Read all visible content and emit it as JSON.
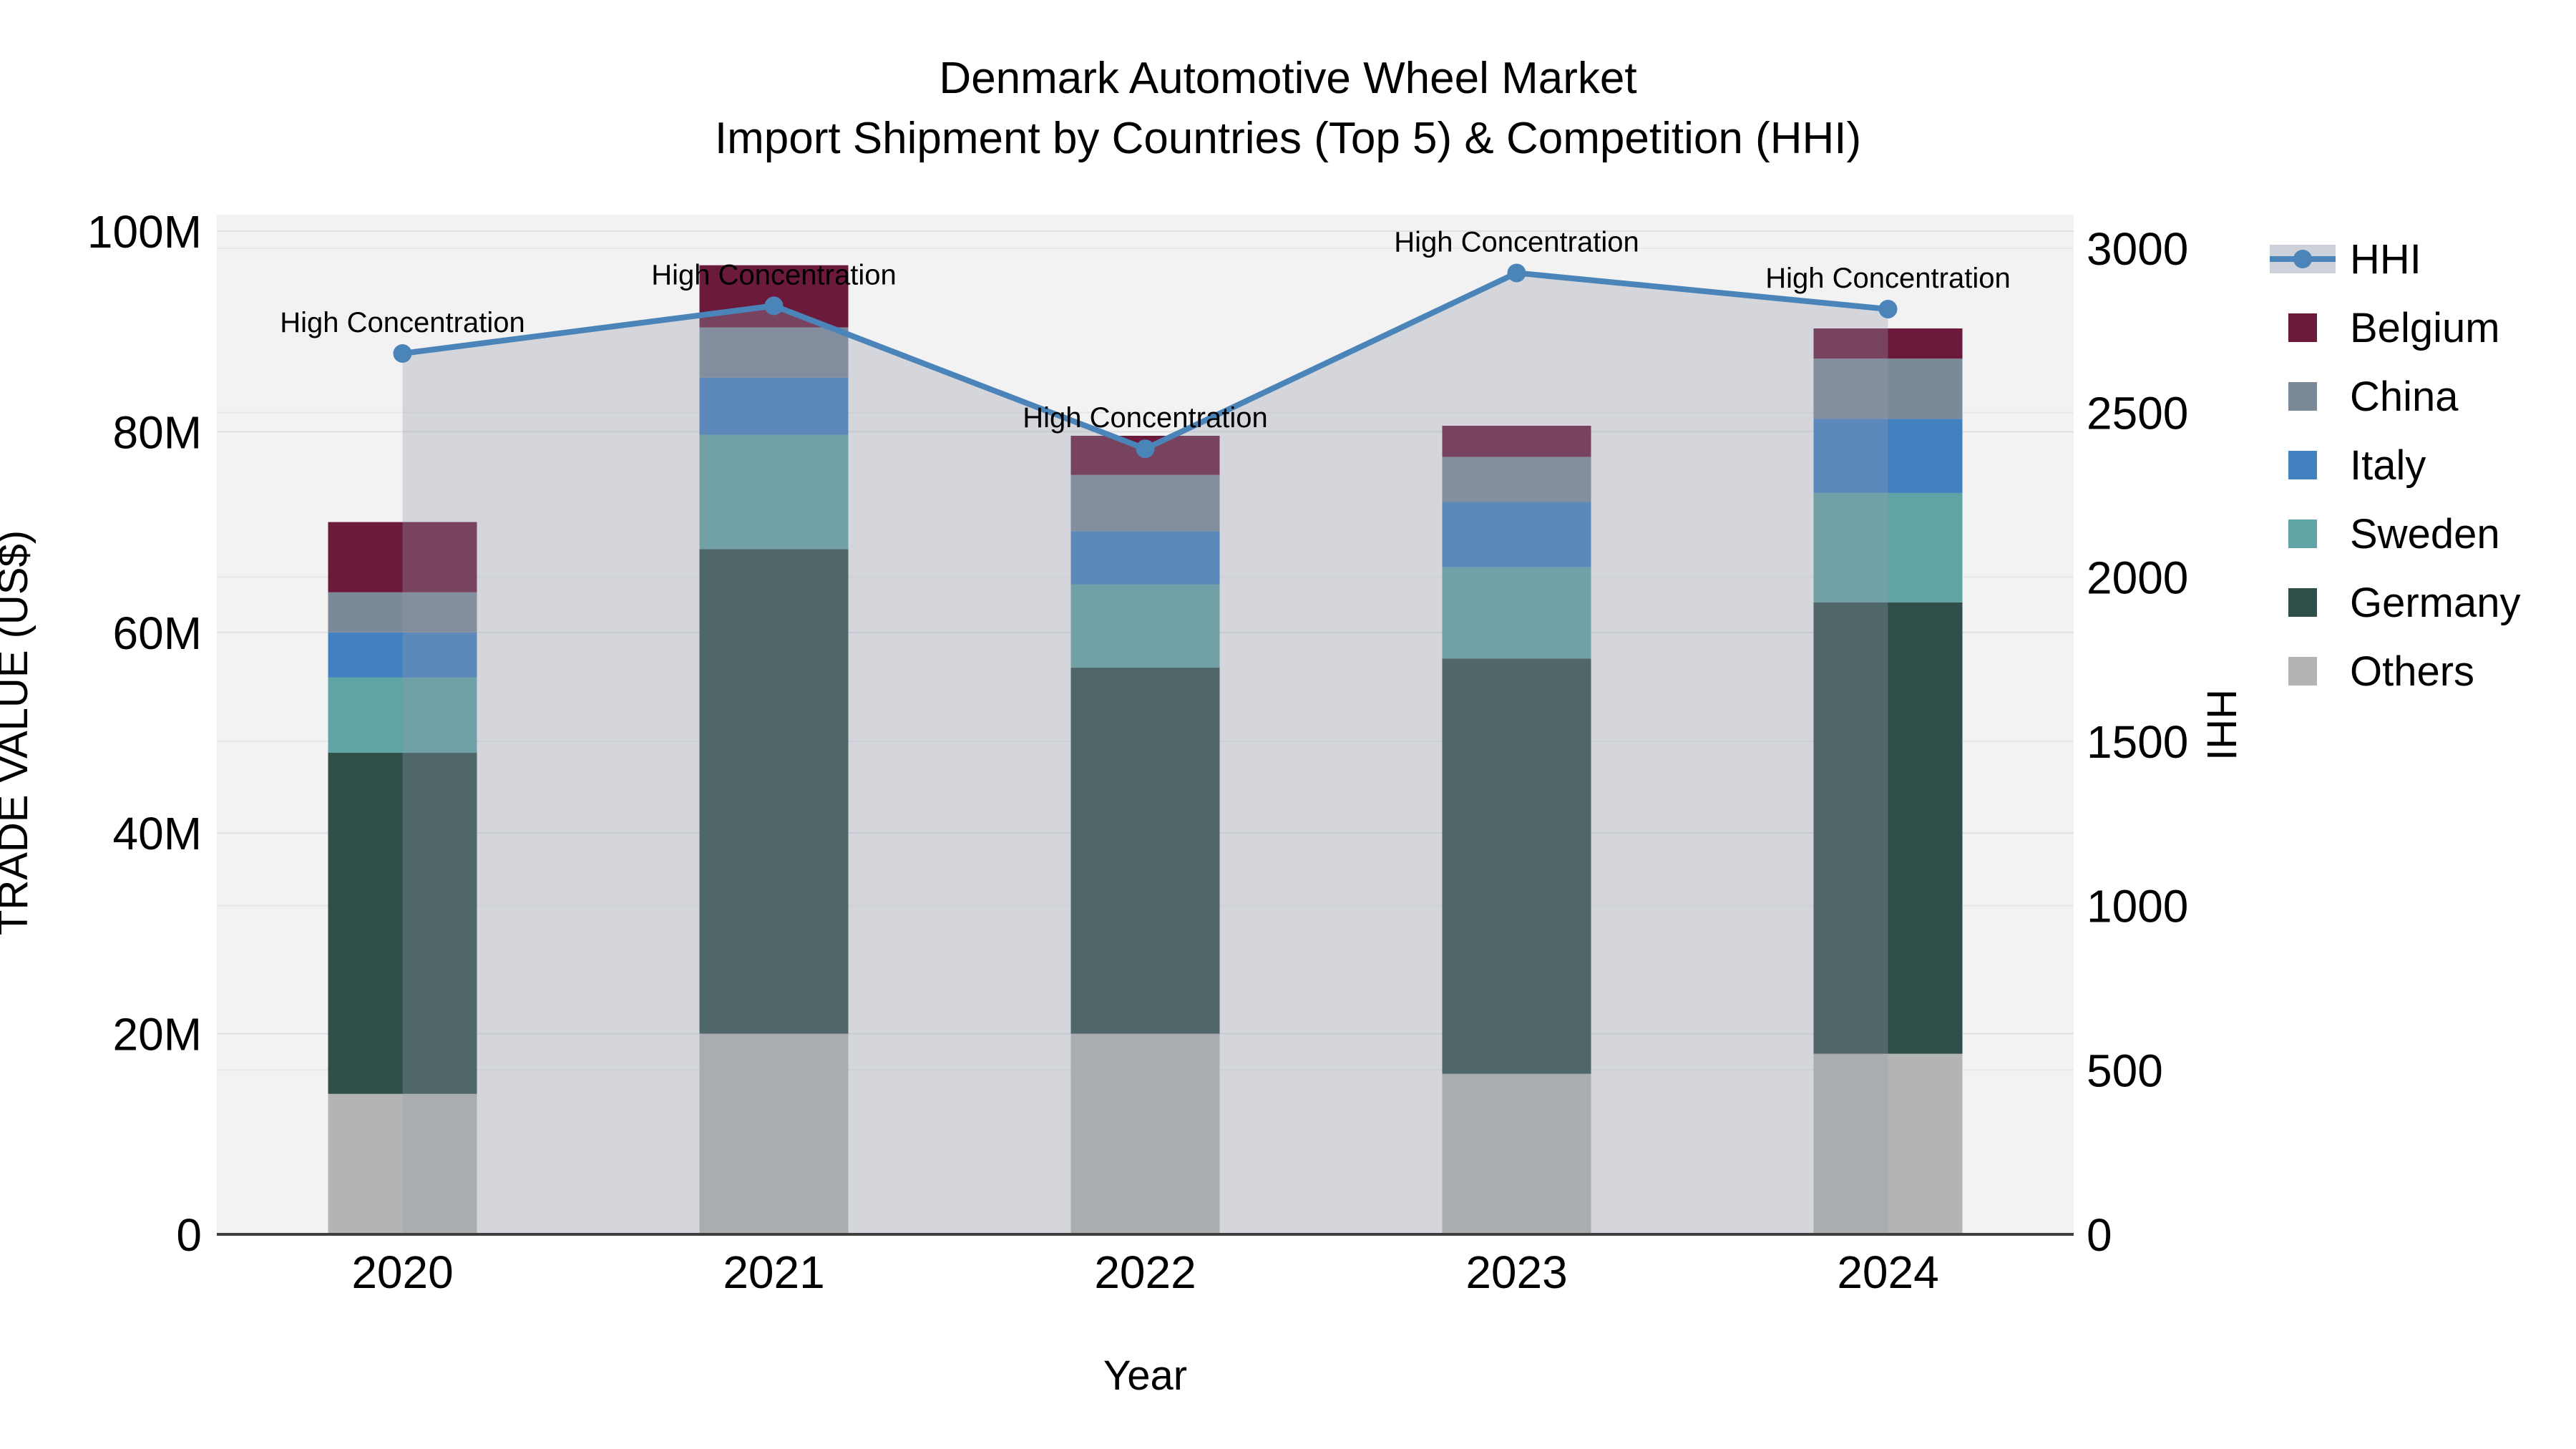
{
  "title": {
    "line1": "Denmark Automotive Wheel Market",
    "line2": "Import Shipment by Countries (Top 5) & Competition (HHI)"
  },
  "chart_data": {
    "type": "combo-stacked-bar-line",
    "x_categories": [
      "2020",
      "2021",
      "2022",
      "2023",
      "2024"
    ],
    "bar_value_unit": "million US$",
    "bar_series": [
      {
        "name": "Others",
        "color": "#b3b5b3",
        "values": [
          14.0,
          20.0,
          20.0,
          16.0,
          18.0
        ]
      },
      {
        "name": "Germany",
        "color": "#304e4a",
        "values": [
          34.0,
          48.3,
          36.5,
          41.4,
          45.0
        ]
      },
      {
        "name": "Sweden",
        "color": "#60a4a6",
        "values": [
          7.5,
          11.4,
          8.3,
          9.1,
          10.9
        ]
      },
      {
        "name": "Italy",
        "color": "#4181c0",
        "values": [
          4.5,
          5.7,
          5.3,
          6.5,
          7.4
        ]
      },
      {
        "name": "China",
        "color": "#7b8a99",
        "values": [
          4.0,
          5.0,
          5.6,
          4.5,
          6.0
        ]
      },
      {
        "name": "Belgium",
        "color": "#6b1a3b",
        "values": [
          7.0,
          6.2,
          3.9,
          3.1,
          3.0
        ]
      }
    ],
    "line_series": {
      "name": "HHI",
      "color": "#4a84b8",
      "area_fill": "rgba(148,155,170,0.32)",
      "values": [
        2680,
        2825,
        2390,
        2925,
        2815
      ]
    },
    "annotations": [
      "High Concentration",
      "High Concentration",
      "High Concentration",
      "High Concentration",
      "High Concentration"
    ],
    "left_axis": {
      "title": "TRADE VALUE (US$)",
      "tick_labels": [
        "0",
        "20M",
        "40M",
        "60M",
        "80M",
        "100M"
      ],
      "tick_values": [
        0,
        20,
        40,
        60,
        80,
        100
      ],
      "max": 100
    },
    "right_axis": {
      "title": "HHI",
      "tick_labels": [
        "0",
        "500",
        "1000",
        "1500",
        "2000",
        "2500",
        "3000"
      ],
      "tick_values": [
        0,
        500,
        1000,
        1500,
        2000,
        2500,
        3000
      ],
      "max": 3000
    },
    "x_axis": {
      "title": "Year"
    },
    "legend_order": [
      "HHI",
      "Belgium",
      "China",
      "Italy",
      "Sweden",
      "Germany",
      "Others"
    ],
    "grid": true,
    "legend_position": "right"
  },
  "colors": {
    "plot_bg": "#f2f2f2",
    "grid_left": "#dfe0e2",
    "grid_right": "#e8e8ea",
    "axis_line": "#3f3f3f",
    "hhi_legend_band": "#ccd1da",
    "text": "#000000"
  }
}
